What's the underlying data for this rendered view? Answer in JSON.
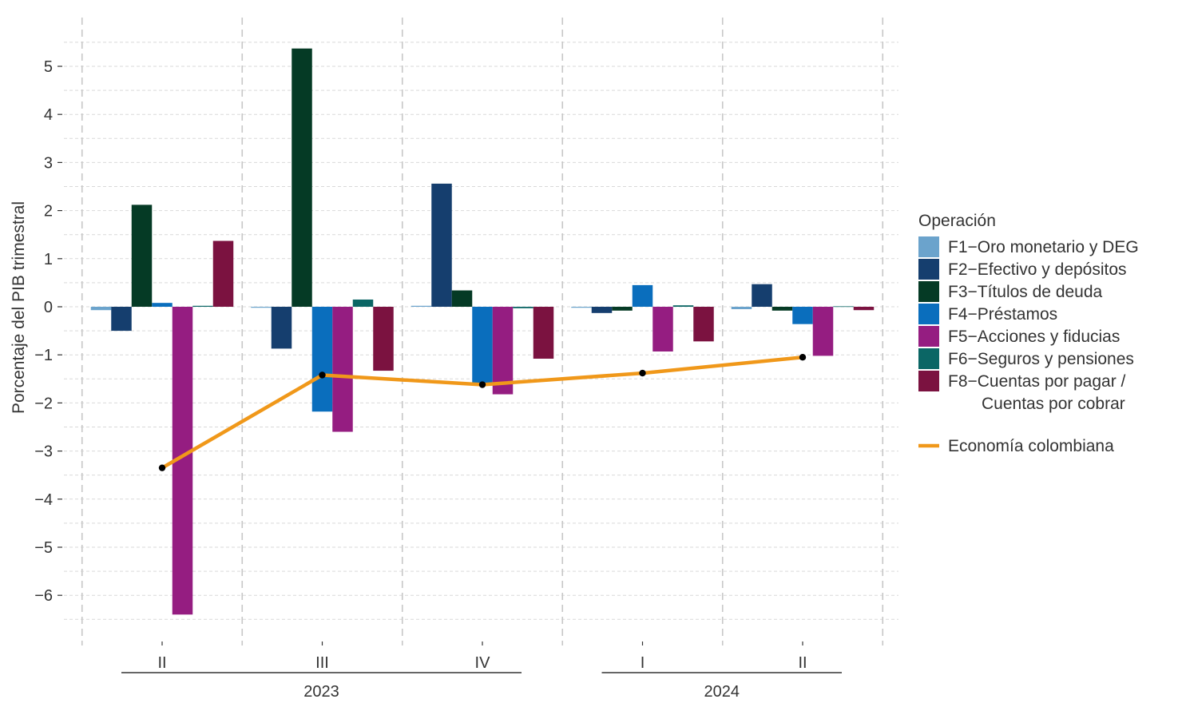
{
  "chart_data": {
    "type": "bar",
    "title": "",
    "xlabel": "",
    "ylabel": "Porcentaje del PIB trimestral",
    "ylim": [
      -6.5,
      5.5
    ],
    "yticks": [
      -6,
      -5,
      -4,
      -3,
      -2,
      -1,
      0,
      1,
      2,
      3,
      4,
      5
    ],
    "grid": true,
    "legend_position": "right",
    "legend_title": "Operación",
    "categories": [
      "II",
      "III",
      "IV",
      "I",
      "II"
    ],
    "year_groups": [
      {
        "label": "2023",
        "from": 0,
        "to": 2
      },
      {
        "label": "2024",
        "from": 3,
        "to": 4
      }
    ],
    "series": [
      {
        "name": "F1−Oro monetario y DEG",
        "color": "#6ba3cc",
        "values": [
          -0.07,
          -0.02,
          0.02,
          -0.02,
          -0.05
        ]
      },
      {
        "name": "F2−Efectivo y depósitos",
        "color": "#153e6e",
        "values": [
          -0.5,
          -0.87,
          2.56,
          -0.13,
          0.47
        ]
      },
      {
        "name": "F3−Títulos de deuda",
        "color": "#053a25",
        "values": [
          2.12,
          5.37,
          0.34,
          -0.08,
          -0.08
        ]
      },
      {
        "name": "F4−Préstamos",
        "color": "#0a6ebd",
        "values": [
          0.08,
          -2.18,
          -1.6,
          0.45,
          -0.36
        ]
      },
      {
        "name": "F5−Acciones y fiducias",
        "color": "#951d81",
        "values": [
          -6.4,
          -2.6,
          -1.82,
          -0.93,
          -1.02
        ]
      },
      {
        "name": "F6−Seguros y pensiones",
        "color": "#0b6665",
        "values": [
          0.02,
          0.15,
          -0.03,
          0.03,
          0.01
        ]
      },
      {
        "name": "F8−Cuentas por pagar / Cuentas por cobrar",
        "name_lines": [
          "F8−Cuentas por pagar /",
          "Cuentas por cobrar"
        ],
        "color": "#7b1240",
        "values": [
          1.37,
          -1.33,
          -1.08,
          -0.72,
          -0.07
        ]
      }
    ],
    "line_series": {
      "name": "Economía colombiana",
      "color": "#f0981a",
      "values": [
        -3.35,
        -1.42,
        -1.62,
        -1.38,
        -1.05
      ]
    }
  }
}
